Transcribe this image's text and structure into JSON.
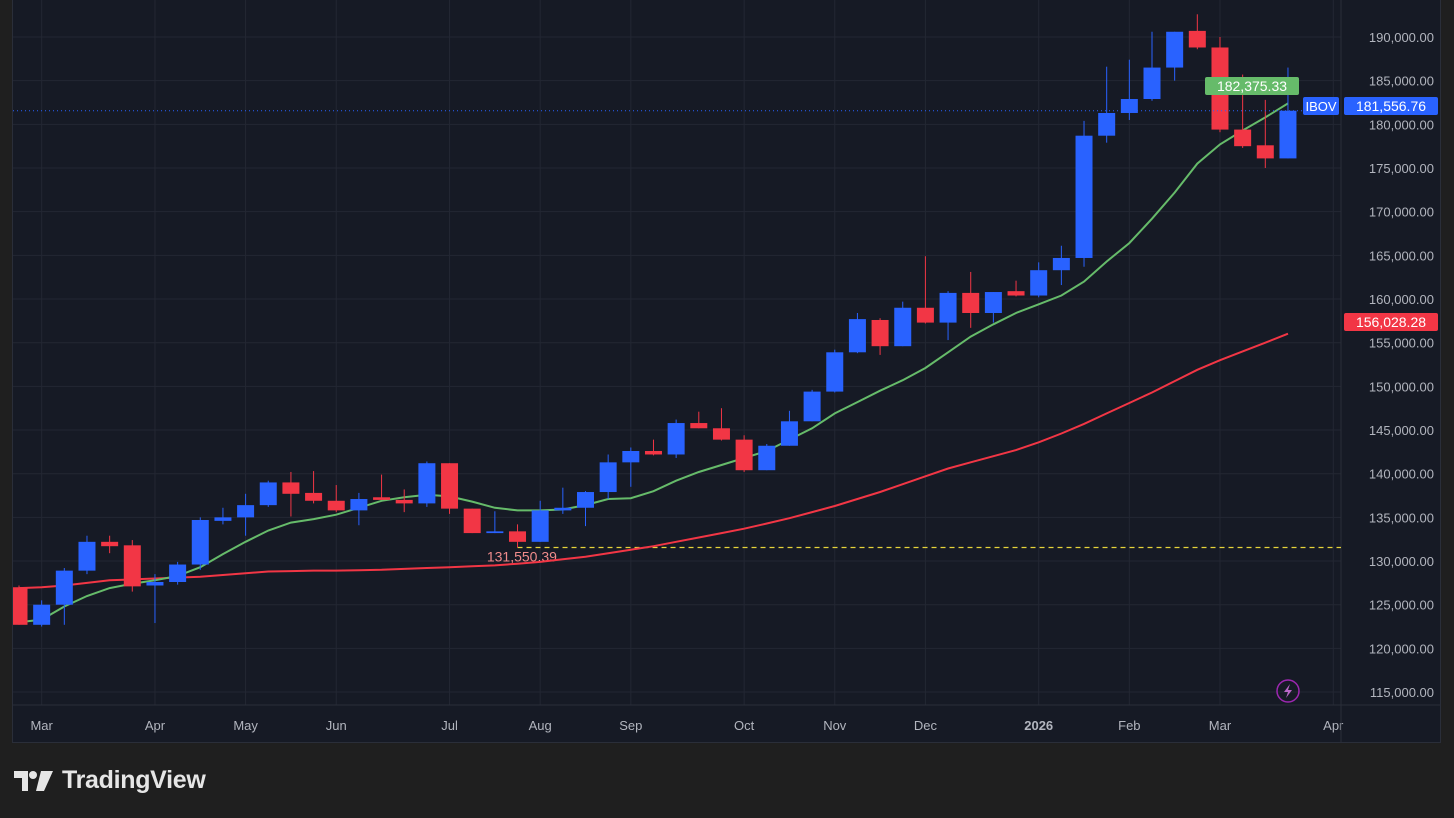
{
  "chart_data": {
    "type": "candlestick",
    "symbol": "IBOV",
    "interval": "weekly",
    "last_price_label": "181,556.76",
    "ema_label": "182,375.33",
    "sma_label": "156,028.28",
    "low_marker_label": "131,550.39",
    "low_marker_value": 131550.39,
    "ylim": [
      112000,
      193500
    ],
    "yticks": [
      115000,
      120000,
      125000,
      130000,
      135000,
      140000,
      145000,
      150000,
      155000,
      160000,
      165000,
      170000,
      175000,
      180000,
      185000,
      190000
    ],
    "ytick_labels": [
      "115,000.00",
      "120,000.00",
      "125,000.00",
      "130,000.00",
      "135,000.00",
      "140,000.00",
      "145,000.00",
      "150,000.00",
      "155,000.00",
      "160,000.00",
      "165,000.00",
      "170,000.00",
      "175,000.00",
      "180,000.00",
      "185,000.00",
      "190,000.00"
    ],
    "xticks": [
      {
        "label": "Mar",
        "i": 1
      },
      {
        "label": "Apr",
        "i": 6
      },
      {
        "label": "May",
        "i": 10
      },
      {
        "label": "Jun",
        "i": 14
      },
      {
        "label": "Jul",
        "i": 19
      },
      {
        "label": "Aug",
        "i": 23
      },
      {
        "label": "Sep",
        "i": 27
      },
      {
        "label": "Oct",
        "i": 32
      },
      {
        "label": "Nov",
        "i": 36
      },
      {
        "label": "Dec",
        "i": 40
      },
      {
        "label": "2026",
        "i": 45,
        "bold": true
      },
      {
        "label": "Feb",
        "i": 49
      },
      {
        "label": "Mar",
        "i": 53
      },
      {
        "label": "Apr",
        "i": 58
      }
    ],
    "ohlc": [
      [
        127.0,
        127.2,
        122.7,
        122.7
      ],
      [
        122.7,
        125.5,
        122.5,
        125.0
      ],
      [
        125.0,
        129.2,
        122.7,
        128.9
      ],
      [
        128.9,
        132.9,
        128.5,
        132.2
      ],
      [
        132.2,
        132.9,
        130.9,
        131.7
      ],
      [
        131.8,
        132.4,
        126.5,
        127.1
      ],
      [
        127.2,
        128.5,
        122.9,
        127.6
      ],
      [
        127.6,
        129.9,
        127.3,
        129.6
      ],
      [
        129.6,
        135.0,
        129.0,
        134.7
      ],
      [
        134.6,
        136.1,
        134.2,
        135.0
      ],
      [
        135.0,
        137.7,
        132.9,
        136.4
      ],
      [
        136.4,
        139.2,
        136.2,
        139.0
      ],
      [
        139.0,
        140.2,
        135.1,
        137.7
      ],
      [
        137.8,
        140.3,
        136.6,
        136.9
      ],
      [
        136.9,
        138.7,
        135.6,
        135.8
      ],
      [
        135.8,
        137.8,
        134.1,
        137.1
      ],
      [
        137.3,
        139.9,
        137.0,
        137.0
      ],
      [
        137.0,
        138.2,
        135.6,
        136.6
      ],
      [
        136.6,
        141.4,
        136.2,
        141.2
      ],
      [
        141.2,
        141.2,
        135.4,
        136.0
      ],
      [
        136.0,
        136.0,
        133.2,
        133.2
      ],
      [
        133.2,
        135.7,
        133.2,
        133.4
      ],
      [
        133.4,
        134.2,
        131.55,
        132.2
      ],
      [
        132.2,
        136.9,
        132.2,
        135.8
      ],
      [
        135.8,
        138.4,
        135.4,
        136.1
      ],
      [
        136.1,
        138.0,
        134.0,
        137.9
      ],
      [
        137.9,
        142.2,
        137.1,
        141.3
      ],
      [
        141.3,
        143.0,
        138.5,
        142.6
      ],
      [
        142.6,
        143.9,
        142.1,
        142.2
      ],
      [
        142.2,
        146.2,
        141.8,
        145.8
      ],
      [
        145.8,
        147.1,
        145.2,
        145.2
      ],
      [
        145.2,
        147.5,
        143.8,
        143.9
      ],
      [
        143.9,
        144.4,
        140.2,
        140.4
      ],
      [
        140.4,
        143.4,
        140.4,
        143.2
      ],
      [
        143.2,
        147.2,
        143.2,
        146.0
      ],
      [
        146.0,
        149.6,
        146.0,
        149.4
      ],
      [
        149.4,
        154.2,
        149.3,
        153.9
      ],
      [
        153.9,
        158.4,
        153.8,
        157.7
      ],
      [
        157.6,
        157.8,
        153.6,
        154.6
      ],
      [
        154.6,
        159.7,
        154.6,
        159.0
      ],
      [
        159.0,
        164.9,
        157.2,
        157.3
      ],
      [
        157.3,
        160.9,
        155.3,
        160.7
      ],
      [
        160.7,
        163.1,
        156.7,
        158.4
      ],
      [
        158.4,
        160.8,
        157.3,
        160.8
      ],
      [
        160.9,
        162.1,
        160.3,
        160.4
      ],
      [
        160.4,
        164.2,
        160.2,
        163.3
      ],
      [
        163.3,
        166.1,
        161.6,
        164.7
      ],
      [
        164.7,
        180.4,
        163.7,
        178.7
      ],
      [
        178.7,
        186.6,
        177.9,
        181.3
      ],
      [
        181.3,
        187.4,
        180.5,
        182.9
      ],
      [
        182.9,
        190.6,
        182.7,
        186.5
      ],
      [
        186.5,
        190.6,
        185.0,
        190.6
      ],
      [
        190.7,
        192.6,
        188.6,
        188.8
      ],
      [
        188.8,
        190.0,
        179.1,
        179.4
      ],
      [
        179.4,
        185.7,
        177.3,
        177.5
      ],
      [
        177.6,
        182.8,
        175.0,
        176.1
      ],
      [
        176.1,
        186.5,
        176.1,
        181.56
      ]
    ],
    "ema": [
      123.0,
      123.3,
      124.8,
      126.0,
      126.9,
      127.4,
      127.8,
      128.3,
      129.3,
      130.8,
      132.2,
      133.5,
      134.4,
      134.8,
      135.3,
      136.1,
      136.9,
      137.3,
      137.6,
      137.4,
      136.8,
      136.1,
      135.8,
      135.8,
      135.9,
      136.4,
      137.1,
      137.2,
      138.0,
      139.2,
      140.2,
      141.0,
      141.8,
      142.6,
      143.9,
      145.2,
      146.9,
      148.2,
      149.5,
      150.7,
      152.1,
      153.9,
      155.7,
      157.1,
      158.4,
      159.4,
      160.4,
      162.0,
      164.3,
      166.4,
      169.2,
      172.2,
      175.5,
      177.7,
      179.3,
      180.8,
      182.4
    ],
    "sma": [
      126.9,
      127.0,
      127.2,
      127.5,
      127.8,
      127.9,
      128.0,
      128.1,
      128.2,
      128.4,
      128.6,
      128.8,
      128.85,
      128.9,
      128.9,
      128.95,
      129.0,
      129.1,
      129.2,
      129.3,
      129.4,
      129.5,
      129.7,
      129.9,
      130.2,
      130.5,
      130.9,
      131.3,
      131.7,
      132.2,
      132.7,
      133.2,
      133.7,
      134.3,
      134.9,
      135.6,
      136.3,
      137.1,
      137.9,
      138.8,
      139.7,
      140.6,
      141.3,
      142.0,
      142.7,
      143.6,
      144.6,
      145.7,
      146.9,
      148.1,
      149.3,
      150.6,
      151.9,
      153.0,
      154.0,
      155.0,
      156.03
    ],
    "units_note": "ohlc/ema/sma in thousands of points"
  },
  "colors": {
    "up": "#2962ff",
    "down": "#f23645",
    "ema": "#66bb6a",
    "sma": "#f23645",
    "marker": "#e6d33a",
    "bg": "#161a25",
    "grid": "#232733"
  },
  "brand": {
    "name": "TradingView"
  }
}
